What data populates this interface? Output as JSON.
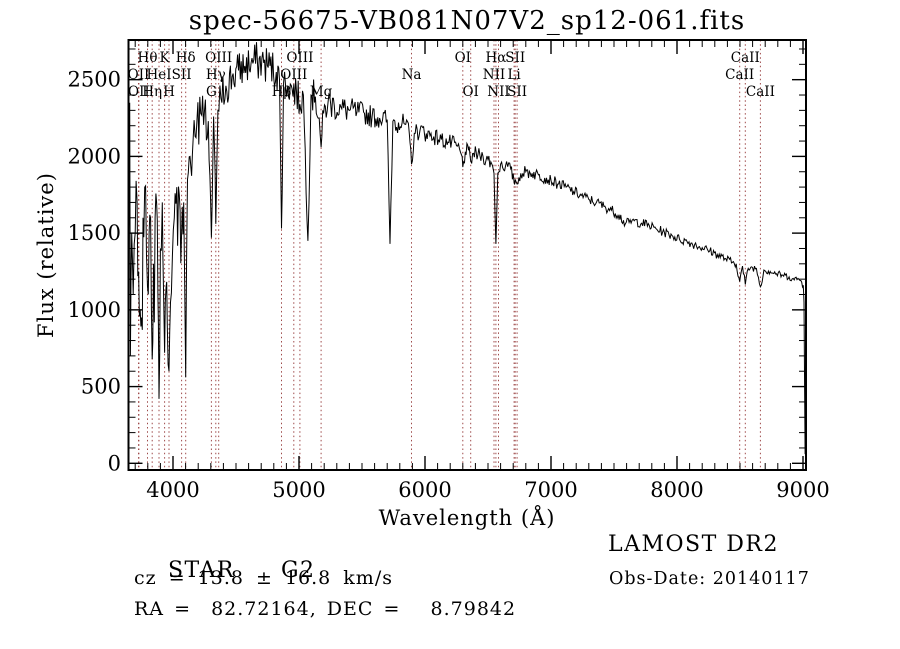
{
  "title": "spec-56675-VB081N07V2_sp12-061.fits",
  "colors": {
    "background": "#ffffff",
    "spectrum_line": "#000000",
    "marker_line": "#9e4a4a",
    "text": "#000000"
  },
  "footer": {
    "object_type": "STAR",
    "subclass": "G2",
    "cz": "cz = 13.8 ± 16.8 km/s",
    "radec": "RA =  82.72164, DEC =   8.79842",
    "survey": "LAMOST DR2",
    "obs_date": "Obs-Date: 20140117"
  },
  "chart_data": {
    "type": "line",
    "title": "spec-56675-VB081N07V2_sp12-061.fits",
    "xlabel": "Wavelength (Å)",
    "ylabel": "Flux (relative)",
    "xlim": [
      3647,
      9024
    ],
    "ylim": [
      0,
      2758
    ],
    "x_ticks": [
      4000,
      5000,
      6000,
      7000,
      8000,
      9000
    ],
    "y_ticks": [
      0,
      500,
      1000,
      1500,
      2000,
      2500
    ],
    "x_minor_step": 100,
    "y_minor_step": 100,
    "grid": false,
    "legend": "none",
    "spectral_lines": [
      {
        "label": "Hθ",
        "wavelength": 3798,
        "row": 1
      },
      {
        "label": "K",
        "wavelength": 3933,
        "row": 1
      },
      {
        "label": "Hδ",
        "wavelength": 4101,
        "row": 1
      },
      {
        "label": "OIII",
        "wavelength": 4363,
        "row": 1
      },
      {
        "label": "OIII",
        "wavelength": 5007,
        "row": 1
      },
      {
        "label": "OI",
        "wavelength": 6300,
        "row": 1
      },
      {
        "label": "Hα",
        "wavelength": 6563,
        "row": 1
      },
      {
        "label": "SII",
        "wavelength": 6716,
        "row": 1
      },
      {
        "label": "CaII",
        "wavelength": 8542,
        "row": 1
      },
      {
        "label": "OII",
        "wavelength": 3726,
        "row": 2
      },
      {
        "label": "HeI",
        "wavelength": 3889,
        "row": 2
      },
      {
        "label": "SII",
        "wavelength": 4068,
        "row": 2
      },
      {
        "label": "Hγ",
        "wavelength": 4340,
        "row": 2
      },
      {
        "label": "OIII",
        "wavelength": 4959,
        "row": 2
      },
      {
        "label": "Na",
        "wavelength": 5893,
        "row": 2
      },
      {
        "label": "NII",
        "wavelength": 6548,
        "row": 2
      },
      {
        "label": "Li",
        "wavelength": 6707,
        "row": 2
      },
      {
        "label": "CaII",
        "wavelength": 8498,
        "row": 2
      },
      {
        "label": "OII",
        "wavelength": 3729,
        "row": 3
      },
      {
        "label": "Hη",
        "wavelength": 3835,
        "row": 3
      },
      {
        "label": "H",
        "wavelength": 3968,
        "row": 3
      },
      {
        "label": "G",
        "wavelength": 4305,
        "row": 3
      },
      {
        "label": "Hβ",
        "wavelength": 4861,
        "row": 3
      },
      {
        "label": "Mg",
        "wavelength": 5175,
        "row": 3
      },
      {
        "label": "OI",
        "wavelength": 6363,
        "row": 3
      },
      {
        "label": "NII",
        "wavelength": 6583,
        "row": 3
      },
      {
        "label": "SII",
        "wavelength": 6731,
        "row": 3
      },
      {
        "label": "CaII",
        "wavelength": 8662,
        "row": 3
      }
    ],
    "series": [
      {
        "name": "flux",
        "points_format": [
          "wavelength_A",
          "flux_relative",
          "noise_amplitude"
        ],
        "points": [
          [
            3650,
            1400,
            950
          ],
          [
            3656,
            2350,
            200
          ],
          [
            3662,
            700,
            500
          ],
          [
            3672,
            1500,
            500
          ],
          [
            3684,
            1100,
            400
          ],
          [
            3700,
            1500,
            350
          ],
          [
            3715,
            1700,
            300
          ],
          [
            3727,
            1250,
            300
          ],
          [
            3740,
            1000,
            280
          ],
          [
            3750,
            950,
            250
          ],
          [
            3762,
            1600,
            280
          ],
          [
            3775,
            1800,
            250
          ],
          [
            3790,
            1350,
            300
          ],
          [
            3798,
            1150,
            250
          ],
          [
            3810,
            1500,
            300
          ],
          [
            3822,
            1600,
            280
          ],
          [
            3835,
            680,
            180
          ],
          [
            3845,
            1300,
            280
          ],
          [
            3858,
            1600,
            250
          ],
          [
            3870,
            1700,
            250
          ],
          [
            3880,
            1100,
            250
          ],
          [
            3889,
            420,
            180
          ],
          [
            3900,
            1400,
            250
          ],
          [
            3915,
            1700,
            220
          ],
          [
            3925,
            1100,
            220
          ],
          [
            3933,
            720,
            180
          ],
          [
            3945,
            1150,
            220
          ],
          [
            3955,
            900,
            200
          ],
          [
            3968,
            600,
            150
          ],
          [
            3980,
            1050,
            220
          ],
          [
            3995,
            1350,
            220
          ],
          [
            4010,
            1600,
            220
          ],
          [
            4030,
            1800,
            200
          ],
          [
            4050,
            1750,
            200
          ],
          [
            4068,
            1500,
            200
          ],
          [
            4085,
            1700,
            180
          ],
          [
            4101,
            560,
            130
          ],
          [
            4115,
            1850,
            180
          ],
          [
            4135,
            2000,
            180
          ],
          [
            4160,
            2120,
            170
          ],
          [
            4190,
            2230,
            160
          ],
          [
            4220,
            2280,
            160
          ],
          [
            4250,
            2300,
            160
          ],
          [
            4280,
            2230,
            160
          ],
          [
            4305,
            1470,
            110
          ],
          [
            4322,
            2260,
            140
          ],
          [
            4340,
            1560,
            110
          ],
          [
            4356,
            2300,
            140
          ],
          [
            4380,
            2380,
            140
          ],
          [
            4420,
            2460,
            140
          ],
          [
            4470,
            2520,
            140
          ],
          [
            4520,
            2560,
            130
          ],
          [
            4570,
            2590,
            130
          ],
          [
            4620,
            2610,
            130
          ],
          [
            4670,
            2620,
            130
          ],
          [
            4720,
            2610,
            130
          ],
          [
            4770,
            2590,
            130
          ],
          [
            4820,
            2550,
            130
          ],
          [
            4845,
            2500,
            120
          ],
          [
            4861,
            1530,
            70
          ],
          [
            4878,
            2480,
            120
          ],
          [
            4910,
            2460,
            120
          ],
          [
            4945,
            2440,
            120
          ],
          [
            4980,
            2420,
            120
          ],
          [
            5007,
            2340,
            110
          ],
          [
            5035,
            2400,
            110
          ],
          [
            5071,
            1450,
            50
          ],
          [
            5095,
            2400,
            110
          ],
          [
            5130,
            2390,
            110
          ],
          [
            5160,
            2250,
            100
          ],
          [
            5175,
            2060,
            90
          ],
          [
            5195,
            2280,
            100
          ],
          [
            5230,
            2350,
            100
          ],
          [
            5280,
            2330,
            95
          ],
          [
            5340,
            2310,
            90
          ],
          [
            5400,
            2300,
            85
          ],
          [
            5460,
            2290,
            80
          ],
          [
            5520,
            2280,
            75
          ],
          [
            5580,
            2260,
            75
          ],
          [
            5640,
            2250,
            70
          ],
          [
            5700,
            2240,
            70
          ],
          [
            5722,
            1430,
            40
          ],
          [
            5745,
            2230,
            70
          ],
          [
            5790,
            2220,
            70
          ],
          [
            5840,
            2210,
            65
          ],
          [
            5875,
            2150,
            60
          ],
          [
            5893,
            1950,
            55
          ],
          [
            5915,
            2150,
            60
          ],
          [
            5960,
            2170,
            60
          ],
          [
            6010,
            2150,
            60
          ],
          [
            6070,
            2130,
            55
          ],
          [
            6130,
            2110,
            55
          ],
          [
            6190,
            2090,
            55
          ],
          [
            6250,
            2070,
            55
          ],
          [
            6290,
            2010,
            50
          ],
          [
            6300,
            1930,
            45
          ],
          [
            6320,
            2030,
            50
          ],
          [
            6345,
            2040,
            50
          ],
          [
            6363,
            1970,
            45
          ],
          [
            6385,
            2020,
            50
          ],
          [
            6420,
            2010,
            50
          ],
          [
            6460,
            2000,
            50
          ],
          [
            6500,
            1980,
            50
          ],
          [
            6530,
            1950,
            45
          ],
          [
            6548,
            1890,
            40
          ],
          [
            6563,
            1430,
            35
          ],
          [
            6578,
            1890,
            40
          ],
          [
            6600,
            1950,
            45
          ],
          [
            6640,
            1940,
            45
          ],
          [
            6680,
            1920,
            42
          ],
          [
            6707,
            1830,
            38
          ],
          [
            6716,
            1850,
            38
          ],
          [
            6731,
            1820,
            38
          ],
          [
            6760,
            1890,
            42
          ],
          [
            6800,
            1900,
            42
          ],
          [
            6850,
            1890,
            40
          ],
          [
            6900,
            1880,
            40
          ],
          [
            6950,
            1860,
            38
          ],
          [
            7000,
            1845,
            38
          ],
          [
            7060,
            1820,
            36
          ],
          [
            7120,
            1800,
            36
          ],
          [
            7180,
            1770,
            36
          ],
          [
            7240,
            1745,
            35
          ],
          [
            7300,
            1720,
            35
          ],
          [
            7360,
            1700,
            34
          ],
          [
            7420,
            1675,
            34
          ],
          [
            7480,
            1650,
            34
          ],
          [
            7540,
            1620,
            33
          ],
          [
            7590,
            1560,
            33
          ],
          [
            7620,
            1570,
            33
          ],
          [
            7660,
            1580,
            32
          ],
          [
            7720,
            1565,
            32
          ],
          [
            7780,
            1550,
            32
          ],
          [
            7840,
            1525,
            31
          ],
          [
            7900,
            1505,
            31
          ],
          [
            7960,
            1485,
            30
          ],
          [
            8020,
            1460,
            30
          ],
          [
            8080,
            1445,
            30
          ],
          [
            8140,
            1425,
            29
          ],
          [
            8200,
            1405,
            29
          ],
          [
            8260,
            1385,
            28
          ],
          [
            8320,
            1360,
            28
          ],
          [
            8380,
            1335,
            28
          ],
          [
            8440,
            1310,
            27
          ],
          [
            8470,
            1300,
            26
          ],
          [
            8498,
            1185,
            24
          ],
          [
            8520,
            1285,
            24
          ],
          [
            8542,
            1165,
            24
          ],
          [
            8565,
            1270,
            24
          ],
          [
            8600,
            1275,
            24
          ],
          [
            8630,
            1270,
            24
          ],
          [
            8662,
            1150,
            22
          ],
          [
            8690,
            1260,
            24
          ],
          [
            8740,
            1250,
            24
          ],
          [
            8790,
            1235,
            23
          ],
          [
            8840,
            1225,
            23
          ],
          [
            8890,
            1215,
            22
          ],
          [
            8930,
            1195,
            22
          ],
          [
            8960,
            1205,
            22
          ],
          [
            8990,
            1180,
            22
          ],
          [
            9002,
            1160,
            25
          ],
          [
            9008,
            1050,
            60
          ],
          [
            9013,
            500,
            80
          ],
          [
            9017,
            60,
            30
          ]
        ]
      }
    ]
  }
}
